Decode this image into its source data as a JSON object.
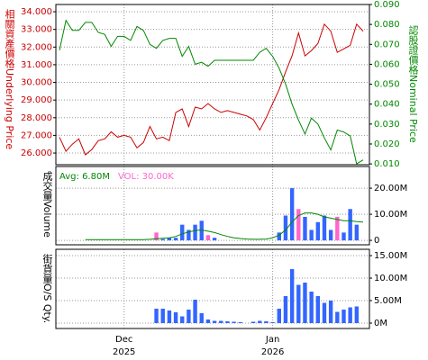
{
  "chart_data": [
    {
      "type": "line",
      "y_label": "相關資產價格Underlying Price",
      "y2_label": "認股證價格Nominal Price",
      "series": [
        {
          "color": "#cc0000",
          "values": [
            26.9,
            26.1,
            26.5,
            26.8,
            25.9,
            26.2,
            26.7,
            26.8,
            27.2,
            26.9,
            27.0,
            26.9,
            26.3,
            26.6,
            27.5,
            26.8,
            26.9,
            26.7,
            28.3,
            28.5,
            27.5,
            28.6,
            28.5,
            28.8,
            28.5,
            28.3,
            28.4,
            28.3,
            28.2,
            28.1,
            27.9,
            27.3,
            28.0,
            28.8,
            29.6,
            30.6,
            31.5,
            32.8,
            31.5,
            31.8,
            32.2,
            33.3,
            32.9,
            31.7,
            31.9,
            32.1,
            33.3,
            32.9
          ]
        },
        {
          "color": "#008800",
          "axis": "y2",
          "values": [
            0.067,
            0.082,
            0.077,
            0.077,
            0.081,
            0.081,
            0.076,
            0.075,
            0.069,
            0.074,
            0.074,
            0.072,
            0.079,
            0.077,
            0.07,
            0.068,
            0.072,
            0.073,
            0.073,
            0.064,
            0.069,
            0.06,
            0.061,
            0.059,
            0.062,
            0.062,
            0.062,
            0.062,
            0.062,
            0.062,
            0.062,
            0.066,
            0.068,
            0.064,
            0.058,
            0.05,
            0.04,
            0.032,
            0.025,
            0.033,
            0.03,
            0.023,
            0.017,
            0.027,
            0.026,
            0.024,
            0.01,
            0.012
          ]
        }
      ],
      "ylim": [
        25.34,
        34.41
      ],
      "yticks": [
        {
          "value": 34,
          "label": "34.000"
        },
        {
          "value": 33,
          "label": "33.000"
        },
        {
          "value": 32,
          "label": "32.000"
        },
        {
          "value": 31,
          "label": "31.000"
        },
        {
          "value": 30,
          "label": "30.000"
        },
        {
          "value": 29,
          "label": "29.000"
        },
        {
          "value": 28,
          "label": "28.000"
        },
        {
          "value": 27,
          "label": "27.000"
        },
        {
          "value": 26,
          "label": "26.000"
        }
      ],
      "y2lim": [
        0.0096,
        0.09
      ],
      "y2ticks": [
        {
          "value": 0.09,
          "label": "0.090"
        },
        {
          "value": 0.08,
          "label": "0.080"
        },
        {
          "value": 0.07,
          "label": "0.070"
        },
        {
          "value": 0.06,
          "label": "0.060"
        },
        {
          "value": 0.05,
          "label": "0.050"
        },
        {
          "value": 0.04,
          "label": "0.040"
        },
        {
          "value": 0.03,
          "label": "0.030"
        },
        {
          "value": 0.02,
          "label": "0.020"
        },
        {
          "value": 0.01,
          "label": "0.010"
        }
      ],
      "grid": true
    },
    {
      "type": "bar",
      "y_label": "成交量Volume",
      "avg_label": "Avg: 6.80M",
      "vol_label": "VOL: 30.00K",
      "avg_color": "#008800",
      "vol_color": "#ff66cc",
      "series": [
        {
          "values": [
            0,
            0,
            0,
            0,
            0,
            0,
            0,
            0,
            0,
            0,
            0,
            0,
            0,
            0,
            0,
            3,
            0.5,
            1,
            1,
            6,
            4,
            6,
            7.5,
            2,
            1,
            0,
            0,
            0,
            0,
            0,
            0,
            0,
            0,
            0,
            3,
            9.5,
            20,
            12,
            9,
            4,
            7,
            9.5,
            4,
            9,
            3,
            12,
            6,
            0
          ],
          "colors": [
            "#3366ff",
            "#3366ff",
            "#3366ff",
            "#3366ff",
            "#3366ff",
            "#3366ff",
            "#3366ff",
            "#3366ff",
            "#3366ff",
            "#3366ff",
            "#3366ff",
            "#3366ff",
            "#3366ff",
            "#3366ff",
            "#3366ff",
            "#ff66cc",
            "#3366ff",
            "#3366ff",
            "#3366ff",
            "#3366ff",
            "#3366ff",
            "#3366ff",
            "#3366ff",
            "#ff66cc",
            "#3366ff",
            "#3366ff",
            "#3366ff",
            "#3366ff",
            "#3366ff",
            "#3366ff",
            "#3366ff",
            "#3366ff",
            "#3366ff",
            "#3366ff",
            "#3366ff",
            "#3366ff",
            "#3366ff",
            "#ff66cc",
            "#3366ff",
            "#3366ff",
            "#3366ff",
            "#3366ff",
            "#3366ff",
            "#ff66cc",
            "#3366ff",
            "#3366ff",
            "#3366ff",
            "#3366ff"
          ]
        },
        {
          "type": "line",
          "color": "#008800",
          "values": [
            null,
            null,
            null,
            null,
            0.3,
            0.3,
            0.3,
            0.3,
            0.3,
            0.3,
            0.3,
            0.3,
            0.3,
            0.3,
            0.4,
            0.6,
            0.8,
            1,
            1.5,
            2.5,
            3.2,
            3.8,
            4,
            3.5,
            3,
            2.2,
            1.5,
            1,
            0.7,
            0.5,
            0.4,
            0.4,
            0.5,
            1,
            2,
            4,
            7,
            9.5,
            10.5,
            10.5,
            10,
            9,
            8.5,
            8,
            7.5,
            7.5,
            7.2,
            7
          ]
        }
      ],
      "ylim": [
        -1.7,
        28.3
      ],
      "yticks": [
        {
          "value": 20,
          "label": "20.00M"
        },
        {
          "value": 10,
          "label": "10.00M"
        },
        0
      ],
      "grid": true
    },
    {
      "type": "bar",
      "y_label": "街貨量O/S Qty.",
      "color": "#3366ff",
      "values": [
        0,
        0,
        0,
        0,
        0,
        0,
        0,
        0,
        0,
        0,
        0,
        0,
        0,
        0,
        0,
        3.2,
        3.2,
        2.8,
        2.4,
        1.5,
        3,
        5.2,
        2.2,
        0.8,
        0.5,
        0.5,
        0.4,
        0.3,
        0.2,
        0,
        0.3,
        0.5,
        0.4,
        0.2,
        3.2,
        6,
        12,
        8.5,
        9,
        7,
        6,
        4.5,
        5,
        2.5,
        3,
        3.5,
        3.7,
        0
      ],
      "ylim": [
        -1.2,
        16.4
      ],
      "yticks": [
        {
          "value": 15,
          "label": "15.00M"
        },
        {
          "value": 10,
          "label": "10.00M"
        },
        {
          "value": 5,
          "label": "5.00M"
        },
        {
          "value": 0,
          "label": "0M"
        }
      ],
      "grid": true,
      "categories": [
        null,
        null,
        null,
        null,
        null,
        null,
        null,
        null,
        null,
        null,
        "Dec",
        null,
        null,
        null,
        null,
        null,
        null,
        null,
        null,
        null,
        null,
        null,
        null,
        null,
        null,
        null,
        null,
        null,
        null,
        null,
        null,
        null,
        null,
        "Jan",
        null,
        null,
        null,
        null,
        null,
        null,
        null,
        null,
        null,
        null,
        null,
        null,
        null,
        null
      ],
      "category_years": [
        null,
        null,
        null,
        null,
        null,
        null,
        null,
        null,
        null,
        null,
        "2025",
        null,
        null,
        null,
        null,
        null,
        null,
        null,
        null,
        null,
        null,
        null,
        null,
        null,
        null,
        null,
        null,
        null,
        null,
        null,
        null,
        null,
        null,
        "2026",
        null,
        null,
        null,
        null,
        null,
        null,
        null,
        null,
        null,
        null,
        null,
        null,
        null,
        null
      ]
    }
  ]
}
